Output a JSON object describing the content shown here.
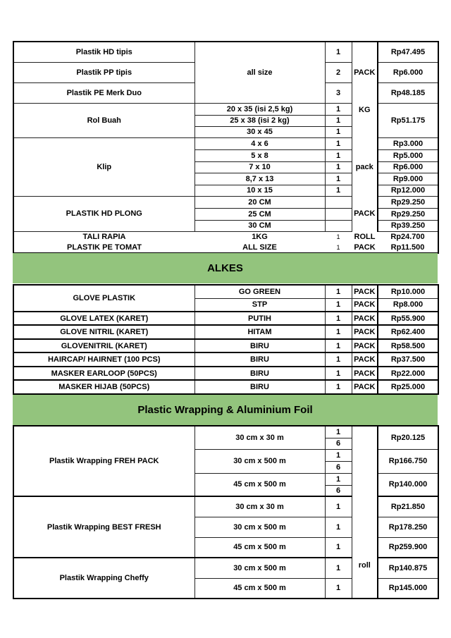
{
  "section1": {
    "hd_tipis": {
      "name": "Plastik HD tipis",
      "qty": "1",
      "price": "Rp47.495"
    },
    "pp_tipis": {
      "name": "Plastik PP tipis",
      "qty": "2",
      "price": "Rp6.000"
    },
    "pe_duo": {
      "name": "Plastik PE Merk Duo",
      "qty": "3",
      "price": "Rp48.185"
    },
    "all_size": "all size",
    "unit_pack": "PACK",
    "unit_kg": "KG",
    "rol_buah": {
      "name": "Rol Buah",
      "sizes": [
        "20 x 35 (isi 2,5 kg)",
        "25 x 38 (isi 2 kg)",
        "30 x 45"
      ],
      "qty": [
        "1",
        "1",
        "1"
      ],
      "price": "Rp51.175"
    },
    "klip": {
      "name": "Klip",
      "unit": "pack",
      "sizes": [
        "4 x 6",
        "5 x 8",
        "7 x 10",
        "8,7 x 13",
        "10 x 15"
      ],
      "qty": [
        "1",
        "1",
        "1",
        "1",
        "1"
      ],
      "prices": [
        "Rp3.000",
        "Rp5.000",
        "Rp6.000",
        "Rp9.000",
        "Rp12.000"
      ]
    },
    "hd_plong": {
      "name": "PLASTIK HD PLONG",
      "unit": "PACK",
      "sizes": [
        "20 CM",
        "25 CM",
        "30 CM"
      ],
      "prices": [
        "Rp29.250",
        "Rp29.250",
        "Rp39.250"
      ]
    },
    "tali_rapia": {
      "name": "TALI RAPIA",
      "size": "1KG",
      "qty": "1",
      "unit": "ROLL",
      "price": "Rp24.700"
    },
    "pe_tomat": {
      "name": "PLASTIK PE TOMAT",
      "size": "ALL SIZE",
      "qty": "1",
      "unit": "PACK",
      "price": "Rp11.500"
    }
  },
  "alkes": {
    "title": "ALKES",
    "rows": [
      {
        "name": "GLOVE PLASTIK",
        "size": "GO GREEN",
        "qty": "1",
        "unit": "PACK",
        "price": "Rp10.000"
      },
      {
        "size": "STP",
        "qty": "1",
        "unit": "PACK",
        "price": "Rp8.000"
      },
      {
        "name": "GLOVE LATEX (KARET)",
        "size": "PUTIH",
        "qty": "1",
        "unit": "PACK",
        "price": "Rp55.900"
      },
      {
        "name": "GLOVE NITRIL (KARET)",
        "size": "HITAM",
        "qty": "1",
        "unit": "PACK",
        "price": "Rp62.400"
      },
      {
        "name": "GLOVENITRIL (KARET)",
        "size": "BIRU",
        "qty": "1",
        "unit": "PACK",
        "price": "Rp58.500"
      },
      {
        "name": "HAIRCAP/ HAIRNET (100 PCS)",
        "size": "BIRU",
        "qty": "1",
        "unit": "PACK",
        "price": "Rp37.500"
      },
      {
        "name": "MASKER EARLOOP (50PCS)",
        "size": "BIRU",
        "qty": "1",
        "unit": "PACK",
        "price": "Rp22.000"
      },
      {
        "name": "MASKER HIJAB (50PCS)",
        "size": "BIRU",
        "qty": "1",
        "unit": "PACK",
        "price": "Rp25.000"
      }
    ]
  },
  "wrapping": {
    "title": "Plastic Wrapping & Aluminium Foil",
    "unit": "roll",
    "fresh_pack": {
      "name": "Plastik Wrapping FREH PACK",
      "sizes": [
        "30 cm x 30 m",
        "30 cm x 500 m",
        "45 cm x 500 m"
      ],
      "qty": [
        [
          "1",
          "6"
        ],
        [
          "1",
          "6"
        ],
        [
          "1",
          "6"
        ]
      ],
      "prices": [
        "Rp20.125",
        "Rp166.750",
        "Rp140.000"
      ]
    },
    "best_fresh": {
      "name": "Plastik Wrapping BEST FRESH",
      "sizes": [
        "30 cm x 30 m",
        "30 cm x 500 m",
        "45 cm x 500 m"
      ],
      "qty": [
        "1",
        "1",
        "1"
      ],
      "prices": [
        "Rp21.850",
        "Rp178.250",
        "Rp259.900"
      ]
    },
    "cheffy": {
      "name": "Plastik Wrapping Cheffy",
      "sizes": [
        "30 cm x 500 m",
        "45 cm x 500 m"
      ],
      "qty": [
        "1",
        "1"
      ],
      "prices": [
        "Rp140.875",
        "Rp145.000"
      ]
    }
  }
}
